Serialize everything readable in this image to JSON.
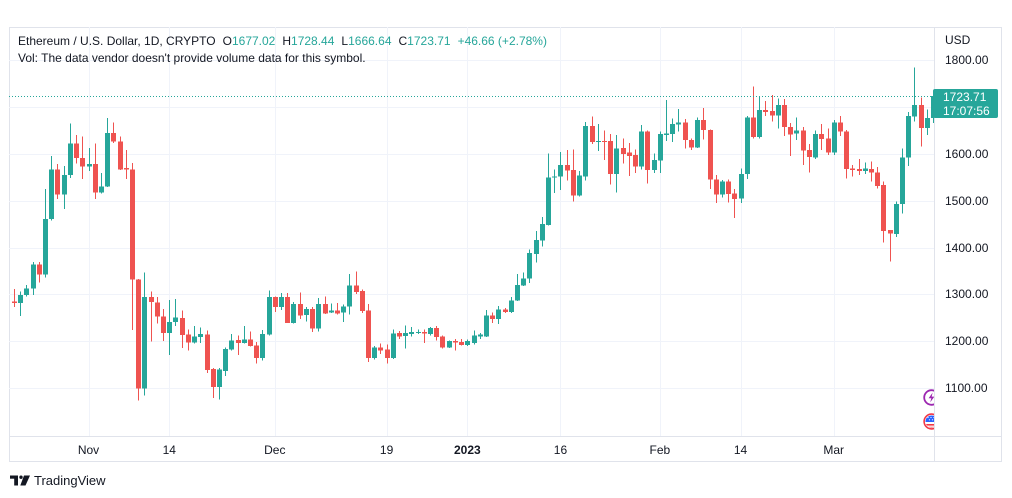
{
  "legend": {
    "symbol": "Ethereum / U.S. Dollar, 1D, CRYPTO",
    "open_label": "O",
    "open": "1677.02",
    "high_label": "H",
    "high": "1728.44",
    "low_label": "L",
    "low": "1666.64",
    "close_label": "C",
    "close": "1723.71",
    "change": "+46.66 (+2.78%)",
    "volume_note": "Vol: The data vendor doesn't provide volume data for this symbol."
  },
  "price_scale": {
    "currency": "USD",
    "last_price": "1723.71",
    "countdown": "17:07:56"
  },
  "event_markers": [
    {
      "icon": "lightning-event-icon",
      "color": "#9c27b0"
    },
    {
      "icon": "us-flag-event-icon",
      "color": "#f23645"
    }
  ],
  "footer": {
    "brand": "TradingView",
    "logo_icon": "tradingview-logo-icon"
  },
  "colors": {
    "up": "#26a69a",
    "down": "#ef5350",
    "grid": "#f0f3fa",
    "border": "#e0e3eb",
    "text": "#131722"
  },
  "chart_data": {
    "type": "candlestick",
    "ylim": [
      997.4,
      1871.4
    ],
    "y_ticks": [
      1100,
      1200,
      1300,
      1400,
      1500,
      1600,
      1700,
      1800
    ],
    "x_ticks": [
      {
        "label": "Nov",
        "bar": 12
      },
      {
        "label": "14",
        "bar": 25
      },
      {
        "label": "Dec",
        "bar": 42
      },
      {
        "label": "19",
        "bar": 60
      },
      {
        "label": "2023",
        "bar": 73
      },
      {
        "label": "16",
        "bar": 88
      },
      {
        "label": "Feb",
        "bar": 104
      },
      {
        "label": "14",
        "bar": 117
      },
      {
        "label": "Mar",
        "bar": 132
      }
    ],
    "last_price": 1723.71,
    "ohlc_fields": [
      "open",
      "high",
      "low",
      "close"
    ],
    "ohlc": [
      [
        1285,
        1312,
        1273,
        1282
      ],
      [
        1282,
        1306,
        1254,
        1299
      ],
      [
        1299,
        1320,
        1295,
        1313
      ],
      [
        1313,
        1369,
        1299,
        1364
      ],
      [
        1364,
        1369,
        1325,
        1343
      ],
      [
        1343,
        1525,
        1336,
        1461
      ],
      [
        1461,
        1596,
        1458,
        1567
      ],
      [
        1567,
        1579,
        1504,
        1514
      ],
      [
        1514,
        1574,
        1482,
        1555
      ],
      [
        1555,
        1665,
        1549,
        1622
      ],
      [
        1622,
        1641,
        1580,
        1591
      ],
      [
        1591,
        1637,
        1547,
        1573
      ],
      [
        1573,
        1613,
        1564,
        1579
      ],
      [
        1579,
        1622,
        1504,
        1518
      ],
      [
        1518,
        1559,
        1516,
        1531
      ],
      [
        1531,
        1677,
        1529,
        1645
      ],
      [
        1645,
        1667,
        1623,
        1627
      ],
      [
        1627,
        1637,
        1566,
        1567
      ],
      [
        1570,
        1609,
        1547,
        1567
      ],
      [
        1567,
        1581,
        1224,
        1332
      ],
      [
        1332,
        1333,
        1073,
        1099
      ],
      [
        1099,
        1347,
        1084,
        1294
      ],
      [
        1294,
        1306,
        1199,
        1284
      ],
      [
        1283,
        1294,
        1238,
        1253
      ],
      [
        1253,
        1269,
        1200,
        1218
      ],
      [
        1218,
        1288,
        1171,
        1241
      ],
      [
        1241,
        1290,
        1232,
        1251
      ],
      [
        1250,
        1266,
        1185,
        1213
      ],
      [
        1214,
        1225,
        1180,
        1197
      ],
      [
        1197,
        1232,
        1195,
        1210
      ],
      [
        1209,
        1229,
        1196,
        1215
      ],
      [
        1214,
        1223,
        1132,
        1138
      ],
      [
        1141,
        1143,
        1079,
        1102
      ],
      [
        1102,
        1143,
        1075,
        1139
      ],
      [
        1136,
        1186,
        1126,
        1183
      ],
      [
        1182,
        1215,
        1180,
        1202
      ],
      [
        1203,
        1212,
        1170,
        1196
      ],
      [
        1196,
        1232,
        1195,
        1204
      ],
      [
        1204,
        1221,
        1189,
        1190
      ],
      [
        1191,
        1198,
        1152,
        1164
      ],
      [
        1164,
        1224,
        1159,
        1215
      ],
      [
        1214,
        1308,
        1212,
        1294
      ],
      [
        1294,
        1296,
        1262,
        1273
      ],
      [
        1273,
        1303,
        1267,
        1294
      ],
      [
        1294,
        1303,
        1239,
        1239
      ],
      [
        1239,
        1284,
        1238,
        1279
      ],
      [
        1279,
        1304,
        1247,
        1255
      ],
      [
        1256,
        1273,
        1242,
        1269
      ],
      [
        1269,
        1273,
        1220,
        1227
      ],
      [
        1227,
        1292,
        1221,
        1279
      ],
      [
        1279,
        1296,
        1258,
        1259
      ],
      [
        1261,
        1281,
        1260,
        1266
      ],
      [
        1266,
        1282,
        1257,
        1259
      ],
      [
        1261,
        1278,
        1241,
        1274
      ],
      [
        1274,
        1344,
        1257,
        1319
      ],
      [
        1319,
        1349,
        1301,
        1305
      ],
      [
        1307,
        1310,
        1260,
        1264
      ],
      [
        1266,
        1279,
        1155,
        1164
      ],
      [
        1164,
        1190,
        1161,
        1187
      ],
      [
        1187,
        1195,
        1173,
        1180
      ],
      [
        1182,
        1193,
        1152,
        1164
      ],
      [
        1164,
        1225,
        1162,
        1216
      ],
      [
        1218,
        1222,
        1205,
        1210
      ],
      [
        1211,
        1233,
        1184,
        1218
      ],
      [
        1215,
        1230,
        1210,
        1220
      ],
      [
        1217,
        1225,
        1215,
        1220
      ],
      [
        1220,
        1225,
        1196,
        1216
      ],
      [
        1215,
        1230,
        1212,
        1228
      ],
      [
        1228,
        1232,
        1202,
        1209
      ],
      [
        1210,
        1212,
        1184,
        1186
      ],
      [
        1186,
        1202,
        1185,
        1200
      ],
      [
        1200,
        1205,
        1180,
        1197
      ],
      [
        1198,
        1205,
        1191,
        1192
      ],
      [
        1192,
        1204,
        1190,
        1200
      ],
      [
        1196,
        1223,
        1193,
        1212
      ],
      [
        1210,
        1218,
        1205,
        1214
      ],
      [
        1210,
        1267,
        1209,
        1255
      ],
      [
        1255,
        1261,
        1239,
        1247
      ],
      [
        1247,
        1275,
        1237,
        1268
      ],
      [
        1268,
        1271,
        1260,
        1262
      ],
      [
        1262,
        1294,
        1260,
        1287
      ],
      [
        1287,
        1344,
        1286,
        1320
      ],
      [
        1319,
        1347,
        1318,
        1334
      ],
      [
        1334,
        1396,
        1324,
        1388
      ],
      [
        1386,
        1436,
        1368,
        1416
      ],
      [
        1415,
        1465,
        1402,
        1450
      ],
      [
        1448,
        1601,
        1447,
        1550
      ],
      [
        1550,
        1567,
        1517,
        1552
      ],
      [
        1552,
        1604,
        1523,
        1577
      ],
      [
        1577,
        1609,
        1543,
        1565
      ],
      [
        1566,
        1610,
        1498,
        1511
      ],
      [
        1511,
        1564,
        1509,
        1554
      ],
      [
        1552,
        1668,
        1543,
        1660
      ],
      [
        1660,
        1680,
        1621,
        1626
      ],
      [
        1626,
        1664,
        1606,
        1628
      ],
      [
        1628,
        1650,
        1587,
        1626
      ],
      [
        1628,
        1643,
        1535,
        1557
      ],
      [
        1557,
        1641,
        1518,
        1612
      ],
      [
        1613,
        1633,
        1580,
        1600
      ],
      [
        1603,
        1623,
        1553,
        1596
      ],
      [
        1598,
        1610,
        1559,
        1573
      ],
      [
        1573,
        1662,
        1567,
        1648
      ],
      [
        1648,
        1650,
        1537,
        1566
      ],
      [
        1566,
        1601,
        1559,
        1587
      ],
      [
        1586,
        1648,
        1559,
        1643
      ],
      [
        1641,
        1715,
        1628,
        1644
      ],
      [
        1643,
        1676,
        1626,
        1664
      ],
      [
        1663,
        1696,
        1648,
        1667
      ],
      [
        1667,
        1675,
        1612,
        1630
      ],
      [
        1630,
        1633,
        1609,
        1614
      ],
      [
        1614,
        1678,
        1613,
        1673
      ],
      [
        1673,
        1698,
        1631,
        1651
      ],
      [
        1651,
        1652,
        1525,
        1546
      ],
      [
        1546,
        1555,
        1495,
        1514
      ],
      [
        1514,
        1544,
        1507,
        1541
      ],
      [
        1541,
        1545,
        1496,
        1515
      ],
      [
        1516,
        1525,
        1463,
        1504
      ],
      [
        1505,
        1569,
        1495,
        1557
      ],
      [
        1557,
        1681,
        1547,
        1678
      ],
      [
        1678,
        1744,
        1633,
        1636
      ],
      [
        1636,
        1724,
        1633,
        1694
      ],
      [
        1694,
        1713,
        1681,
        1690
      ],
      [
        1692,
        1726,
        1669,
        1682
      ],
      [
        1682,
        1719,
        1655,
        1705
      ],
      [
        1705,
        1718,
        1639,
        1658
      ],
      [
        1658,
        1666,
        1596,
        1642
      ],
      [
        1644,
        1678,
        1630,
        1650
      ],
      [
        1650,
        1658,
        1576,
        1607
      ],
      [
        1609,
        1621,
        1560,
        1594
      ],
      [
        1593,
        1650,
        1589,
        1643
      ],
      [
        1643,
        1664,
        1609,
        1632
      ],
      [
        1633,
        1655,
        1598,
        1603
      ],
      [
        1603,
        1673,
        1598,
        1667
      ],
      [
        1667,
        1681,
        1638,
        1648
      ],
      [
        1648,
        1651,
        1548,
        1568
      ],
      [
        1569,
        1576,
        1552,
        1566
      ],
      [
        1568,
        1589,
        1555,
        1564
      ],
      [
        1564,
        1582,
        1557,
        1569
      ],
      [
        1568,
        1584,
        1541,
        1560
      ],
      [
        1561,
        1572,
        1526,
        1532
      ],
      [
        1534,
        1541,
        1411,
        1436
      ],
      [
        1438,
        1438,
        1370,
        1430
      ],
      [
        1429,
        1498,
        1423,
        1493
      ],
      [
        1493,
        1612,
        1473,
        1593
      ],
      [
        1593,
        1690,
        1574,
        1681
      ],
      [
        1680,
        1785,
        1669,
        1705
      ],
      [
        1705,
        1721,
        1616,
        1656
      ],
      [
        1656,
        1695,
        1641,
        1677
      ],
      [
        1677.02,
        1728.44,
        1666.64,
        1723.71
      ]
    ]
  }
}
